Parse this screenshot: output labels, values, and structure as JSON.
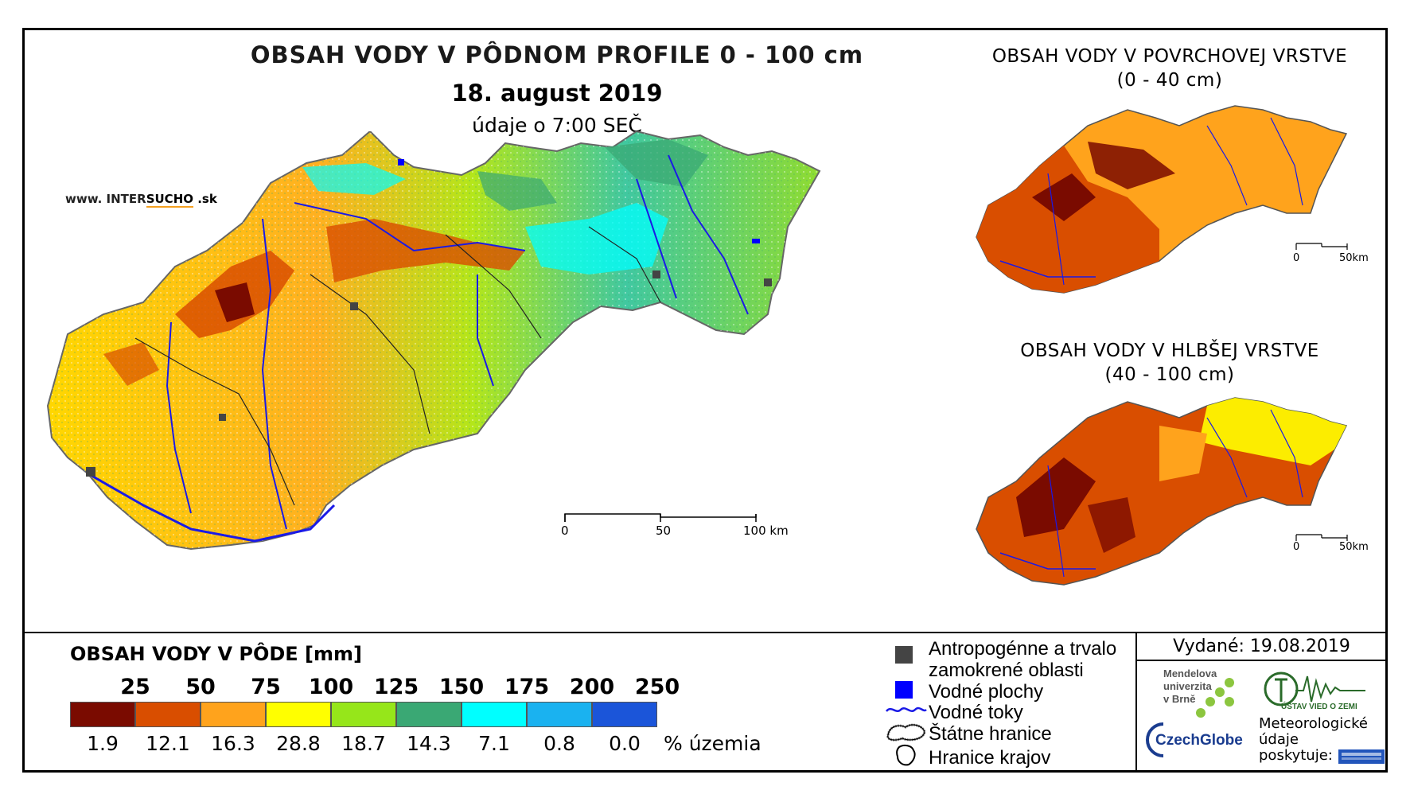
{
  "header": {
    "title": "OBSAH VODY V PÔDNOM PROFILE 0 - 100 cm",
    "date": "18. august 2019",
    "time": "údaje o 7:00 SEČ",
    "website_prefix": "www. INTER",
    "website_brand": "SUCHO",
    "website_suffix": " .sk"
  },
  "main_map": {
    "scale": {
      "l0": "0",
      "l1": "50",
      "l2": "100 km"
    }
  },
  "surface_map": {
    "title_line1": "OBSAH VODY V POVRCHOVEJ VRSTVE",
    "title_line2": "(0 - 40 cm)",
    "scale": {
      "l0": "0",
      "l1": "50km"
    }
  },
  "deep_map": {
    "title_line1": "OBSAH VODY V HLBŠEJ VRSTVE",
    "title_line2": "(40 - 100 cm)",
    "scale": {
      "l0": "0",
      "l1": "50km"
    }
  },
  "legend": {
    "title": "OBSAH VODY V PÔDE [mm]",
    "classes": [
      {
        "top": "25",
        "percent": "1.9",
        "color": "#7a0b00"
      },
      {
        "top": "50",
        "percent": "12.1",
        "color": "#d94e00"
      },
      {
        "top": "75",
        "percent": "16.3",
        "color": "#ffa31c"
      },
      {
        "top": "100",
        "percent": "28.8",
        "color": "#ffff00"
      },
      {
        "top": "125",
        "percent": "18.7",
        "color": "#96e61a"
      },
      {
        "top": "150",
        "percent": "14.3",
        "color": "#3aa874"
      },
      {
        "top": "175",
        "percent": "7.1",
        "color": "#00ffff"
      },
      {
        "top": "200",
        "percent": "0.8",
        "color": "#1ab2f0"
      },
      {
        "top": "250",
        "percent": "0.0",
        "color": "#1b55d9"
      }
    ],
    "unit": "% územia"
  },
  "symbols": {
    "anthro_line1": "Antropogénne a trvalo",
    "anthro_line2": "zamokrené oblasti",
    "water_areas": "Vodné plochy",
    "rivers": "Vodné toky",
    "state_border": "Štátne hranice",
    "region_border": "Hranice krajov"
  },
  "footer": {
    "issued": "Vydané: 19.08.2019",
    "mendel_line1": "Mendelova",
    "mendel_line2": "univerzita",
    "mendel_line3": "v Brně",
    "czechglobe": "CzechGlobe",
    "uvoz": "ÚSTAV VIED O ZEMI",
    "meteo_line1": "Meteorologické",
    "meteo_line2": "údaje",
    "meteo_line3": "poskytuje:"
  },
  "colors": {
    "river": "#1a1ae6",
    "anthropogenic": "#444444",
    "water_body": "#0000ff"
  }
}
